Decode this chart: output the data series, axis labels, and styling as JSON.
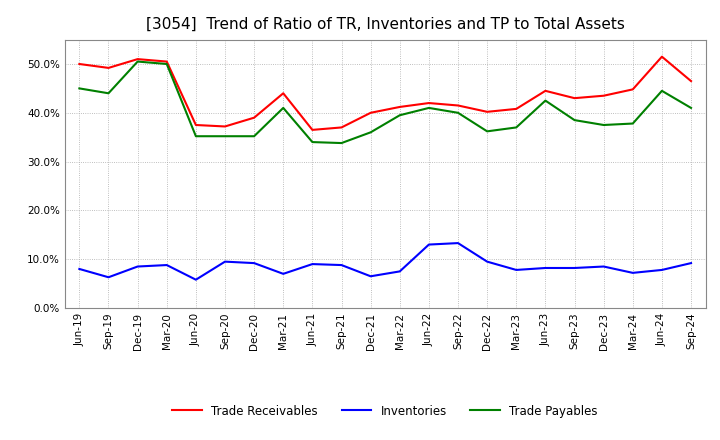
{
  "title": "[3054]  Trend of Ratio of TR, Inventories and TP to Total Assets",
  "x_labels": [
    "Jun-19",
    "Sep-19",
    "Dec-19",
    "Mar-20",
    "Jun-20",
    "Sep-20",
    "Dec-20",
    "Mar-21",
    "Jun-21",
    "Sep-21",
    "Dec-21",
    "Mar-22",
    "Jun-22",
    "Sep-22",
    "Dec-22",
    "Mar-23",
    "Jun-23",
    "Sep-23",
    "Dec-23",
    "Mar-24",
    "Jun-24",
    "Sep-24"
  ],
  "trade_receivables": [
    0.5,
    0.492,
    0.51,
    0.505,
    0.375,
    0.372,
    0.39,
    0.44,
    0.365,
    0.37,
    0.4,
    0.412,
    0.42,
    0.415,
    0.402,
    0.408,
    0.445,
    0.43,
    0.435,
    0.448,
    0.515,
    0.465
  ],
  "inventories": [
    0.08,
    0.063,
    0.085,
    0.088,
    0.058,
    0.095,
    0.092,
    0.07,
    0.09,
    0.088,
    0.065,
    0.075,
    0.13,
    0.133,
    0.095,
    0.078,
    0.082,
    0.082,
    0.085,
    0.072,
    0.078,
    0.092
  ],
  "trade_payables": [
    0.45,
    0.44,
    0.505,
    0.5,
    0.352,
    0.352,
    0.352,
    0.41,
    0.34,
    0.338,
    0.36,
    0.395,
    0.41,
    0.4,
    0.362,
    0.37,
    0.425,
    0.385,
    0.375,
    0.378,
    0.445,
    0.41
  ],
  "line_colors": {
    "trade_receivables": "#FF0000",
    "inventories": "#0000FF",
    "trade_payables": "#008000"
  },
  "legend_labels": {
    "trade_receivables": "Trade Receivables",
    "inventories": "Inventories",
    "trade_payables": "Trade Payables"
  },
  "ylim": [
    0.0,
    0.55
  ],
  "yticks": [
    0.0,
    0.1,
    0.2,
    0.3,
    0.4,
    0.5
  ],
  "background_color": "#FFFFFF",
  "plot_background": "#FFFFFF",
  "grid_color": "#AAAAAA",
  "title_fontsize": 11,
  "axis_fontsize": 7.5,
  "legend_fontsize": 8.5
}
